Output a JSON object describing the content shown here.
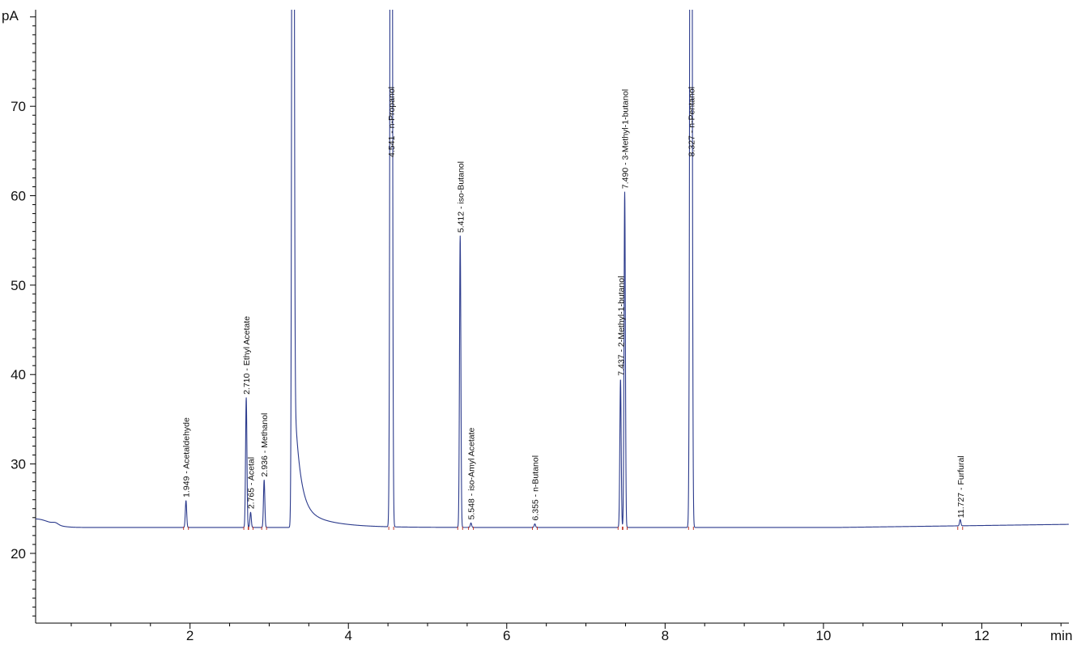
{
  "chart_data": {
    "type": "line",
    "title": "",
    "xlabel": "min",
    "ylabel": "pA",
    "xlim": [
      0.05,
      13.1
    ],
    "ylim": [
      12.2,
      80.8
    ],
    "x_ticks": [
      2,
      4,
      6,
      8,
      10,
      12
    ],
    "y_ticks": [
      20,
      30,
      40,
      50,
      60,
      70
    ],
    "grid": false,
    "colors": {
      "trace": "#2b3a8c",
      "axis": "#000000",
      "baseline_marker": "#c0392b"
    },
    "series": [
      {
        "baseline_pA": 22.9,
        "peaks": [
          {
            "rt": 1.949,
            "name": "Acetaldehyde",
            "label": "1.949 - Acetaldehyde",
            "height_pA": 25.9
          },
          {
            "rt": 2.71,
            "name": "Ethyl Acetate",
            "label": "2.710 - Ethyl Acetate",
            "height_pA": 37.4
          },
          {
            "rt": 2.765,
            "name": "Acetal",
            "label": "2.765 - Acetal",
            "height_pA": 24.6
          },
          {
            "rt": 2.936,
            "name": "Methanol",
            "label": "2.936 - Methanol",
            "height_pA": 28.2
          },
          {
            "rt": 3.3,
            "name": "",
            "label": "",
            "height_pA": 200
          },
          {
            "rt": 4.541,
            "name": "n-Propanol",
            "label": "4.541 - n-Propanol",
            "height_pA": 200
          },
          {
            "rt": 5.412,
            "name": "iso-Butanol",
            "label": "5.412 - iso-Butanol",
            "height_pA": 55.5
          },
          {
            "rt": 5.548,
            "name": "iso-Amyl Acetate",
            "label": "5.548 - iso-Amyl Acetate",
            "height_pA": 23.4
          },
          {
            "rt": 6.355,
            "name": "n-Butanol",
            "label": "6.355 - n-Butanol",
            "height_pA": 23.3
          },
          {
            "rt": 7.437,
            "name": "2-Methyl-1-butanol",
            "label": "7.437 - 2-Methyl-1-butanol",
            "height_pA": 39.5
          },
          {
            "rt": 7.49,
            "name": "3-Methyl-1-butanol",
            "label": "7.490 - 3-Methyl-1-butanol",
            "height_pA": 60.4
          },
          {
            "rt": 8.327,
            "name": "n-Pentanol",
            "label": "8.327 - n-Pentanol",
            "height_pA": 200
          },
          {
            "rt": 11.727,
            "name": "Furfural",
            "label": "11.727 - Furfural",
            "height_pA": 23.6
          }
        ]
      }
    ]
  }
}
